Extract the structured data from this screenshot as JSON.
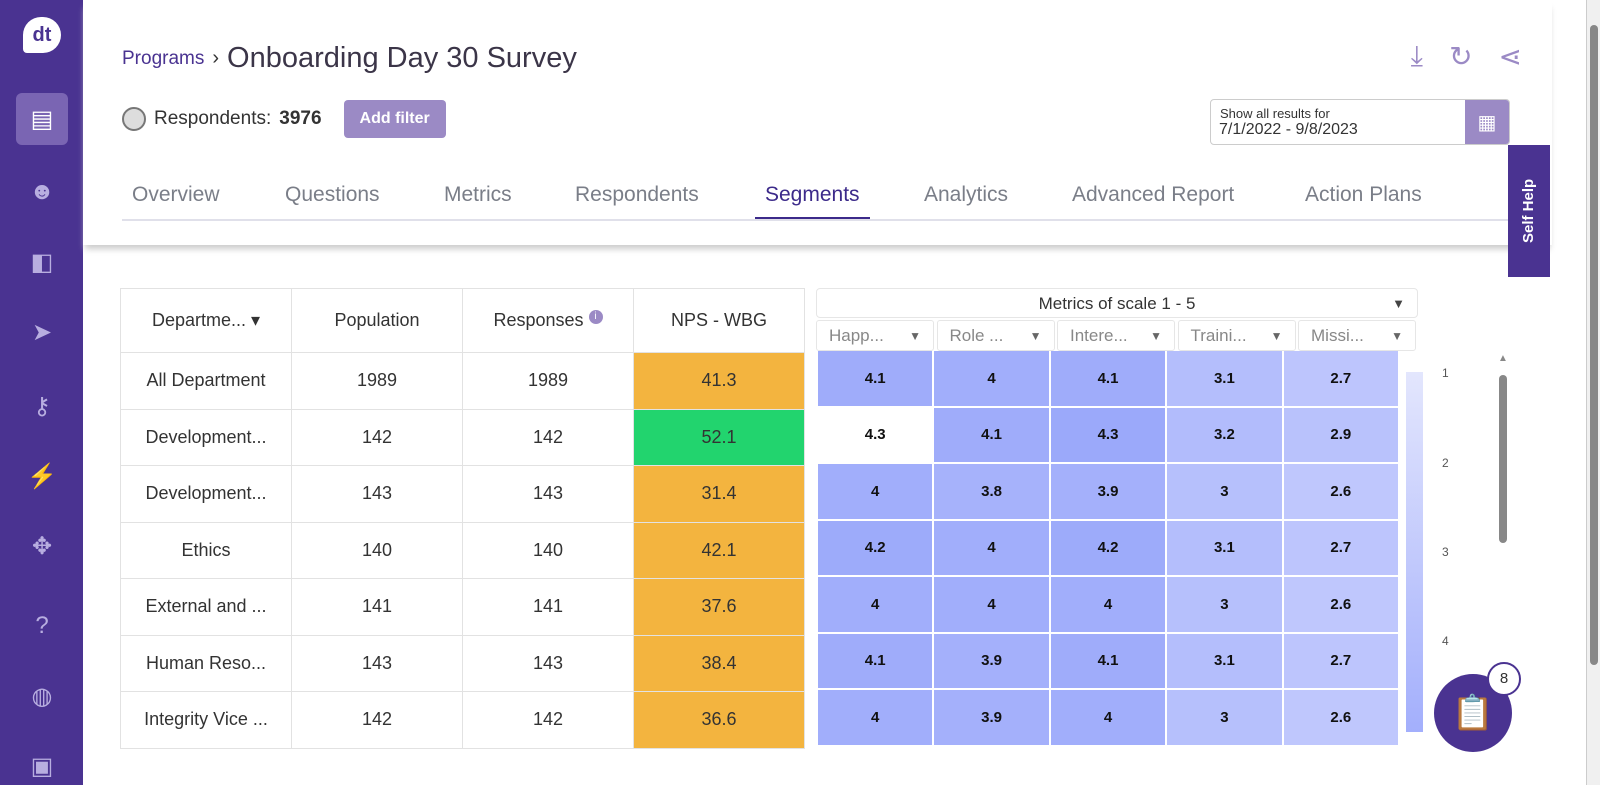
{
  "sidebar": {
    "logo": "dt",
    "items": [
      "clipboard-icon",
      "face-icon",
      "segment-icon",
      "send-icon",
      "key-icon",
      "automation-icon",
      "puzzle-icon",
      "help-icon",
      "globe-icon",
      "briefcase-icon"
    ]
  },
  "header": {
    "breadcrumb": "Programs",
    "title": "Onboarding Day 30 Survey",
    "respondents_label": "Respondents:",
    "respondents_count": "3976",
    "add_filter": "Add filter",
    "date_label": "Show all results for",
    "date_range": "7/1/2022 - 9/8/2023"
  },
  "tabs": [
    "Overview",
    "Questions",
    "Metrics",
    "Respondents",
    "Segments",
    "Analytics",
    "Advanced Report",
    "Action Plans"
  ],
  "active_tab": "Segments",
  "self_help": "Self Help",
  "table": {
    "headers": [
      "Departme...",
      "Population",
      "Responses",
      "NPS - WBG"
    ],
    "rows": [
      [
        "All Department",
        "1989",
        "1989",
        "41.3"
      ],
      [
        "Development...",
        "142",
        "142",
        "52.1"
      ],
      [
        "Development...",
        "143",
        "143",
        "31.4"
      ],
      [
        "Ethics",
        "140",
        "140",
        "42.1"
      ],
      [
        "External and ...",
        "141",
        "141",
        "37.6"
      ],
      [
        "Human Reso...",
        "143",
        "143",
        "38.4"
      ],
      [
        "Integrity Vice ...",
        "142",
        "142",
        "36.6"
      ]
    ],
    "nps_colors": {
      "green": "#22d46e",
      "orange": "#f3b43f"
    }
  },
  "metrics": {
    "dropdown": "Metrics of scale 1 - 5",
    "columns": [
      "Happ...",
      "Role ...",
      "Intere...",
      "Traini...",
      "Missi..."
    ],
    "values": [
      [
        4.1,
        4,
        4.1,
        3.1,
        2.7
      ],
      [
        4.3,
        4.1,
        4.3,
        3.2,
        2.9
      ],
      [
        4,
        3.8,
        3.9,
        3,
        2.6
      ],
      [
        4.2,
        4,
        4.2,
        3.1,
        2.7
      ],
      [
        4,
        4,
        4,
        3,
        2.6
      ],
      [
        4.1,
        3.9,
        4.1,
        3.1,
        2.7
      ],
      [
        4,
        3.9,
        4,
        3,
        2.6
      ]
    ],
    "legend_ticks": [
      "1",
      "2",
      "3",
      "4"
    ]
  },
  "notifications": "8"
}
